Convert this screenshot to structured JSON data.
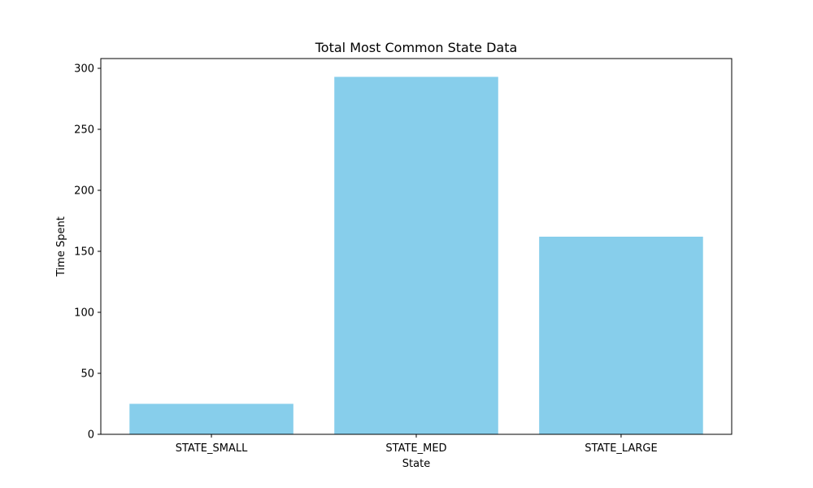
{
  "chart_data": {
    "type": "bar",
    "title": "Total Most Common State Data",
    "xlabel": "State",
    "ylabel": "Time Spent",
    "categories": [
      "STATE_SMALL",
      "STATE_MED",
      "STATE_LARGE"
    ],
    "values": [
      25,
      293,
      162
    ],
    "ylim": [
      0,
      308
    ],
    "yticks": [
      0,
      50,
      100,
      150,
      200,
      250,
      300
    ],
    "bar_color": "#87ceeb",
    "grid": false,
    "legend": "none"
  }
}
